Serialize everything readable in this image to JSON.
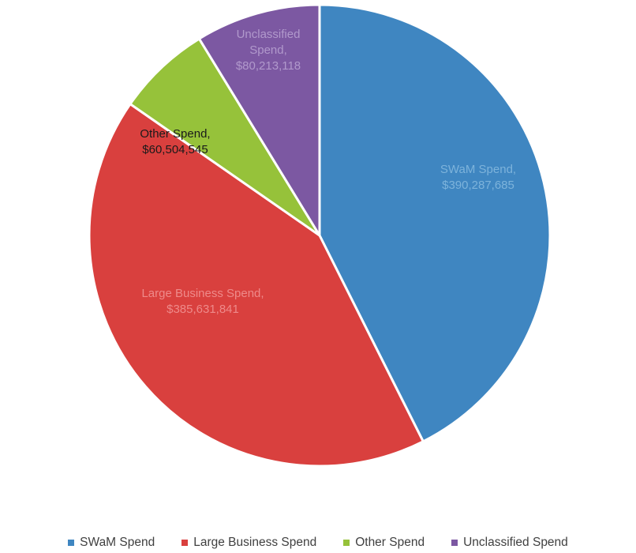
{
  "chart_data": {
    "type": "pie",
    "title": "",
    "series": [
      {
        "name": "SWaM Spend",
        "value": 390287685,
        "label_line1": "SWaM Spend,",
        "label_line2": "$390,287,685",
        "color": "#3F86C1",
        "label_color": "#7DB3DB"
      },
      {
        "name": "Large Business Spend",
        "value": 385631841,
        "label_line1": "Large Business Spend,",
        "label_line2": "$385,631,841",
        "color": "#D9403E",
        "label_color": "#EE8A8A"
      },
      {
        "name": "Other Spend",
        "value": 60504545,
        "label_line1": "Other Spend,",
        "label_line2": "$60,504,545",
        "color": "#96C23A",
        "label_color": "#1A1A1A"
      },
      {
        "name": "Unclassified Spend",
        "value": 80213118,
        "label_line1": "Unclassified",
        "label_line2": "Spend,",
        "label_line3": "$80,213,118",
        "color": "#7C58A2",
        "label_color": "#B199CC"
      }
    ],
    "legend": {
      "position": "bottom",
      "items": [
        "SWaM Spend",
        "Large Business Spend",
        "Other Spend",
        "Unclassified Spend"
      ]
    }
  }
}
